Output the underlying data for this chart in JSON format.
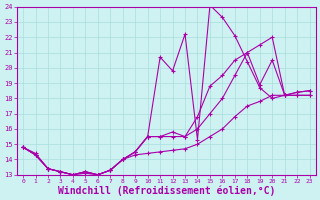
{
  "xlabel": "Windchill (Refroidissement éolien,°C)",
  "xlabel_fontsize": 7.0,
  "background_color": "#cef2f2",
  "grid_color": "#aadddd",
  "line_color": "#aa00aa",
  "xmin": 0,
  "xmax": 23,
  "ymin": 13,
  "ymax": 24,
  "series": [
    [
      14.8,
      14.3,
      13.4,
      13.2,
      13.0,
      13.2,
      13.0,
      13.3,
      14.0,
      14.5,
      15.5,
      20.7,
      19.8,
      22.2,
      15.3,
      24.1,
      23.3,
      22.1,
      20.4,
      18.7,
      18.0,
      18.2,
      18.2,
      18.2
    ],
    [
      14.8,
      14.3,
      13.4,
      13.2,
      13.0,
      13.2,
      13.0,
      13.3,
      14.0,
      14.5,
      15.5,
      15.5,
      15.8,
      15.5,
      16.8,
      18.8,
      19.5,
      20.5,
      21.0,
      18.9,
      20.5,
      18.2,
      18.4,
      18.5
    ],
    [
      14.8,
      14.4,
      13.4,
      13.2,
      13.0,
      13.1,
      13.0,
      13.3,
      14.0,
      14.3,
      14.4,
      14.5,
      14.6,
      14.7,
      15.0,
      15.5,
      16.0,
      16.8,
      17.5,
      17.8,
      18.2,
      18.2,
      18.2,
      18.2
    ],
    [
      14.8,
      14.3,
      13.4,
      13.2,
      13.0,
      13.2,
      13.0,
      13.3,
      14.0,
      14.5,
      15.5,
      15.5,
      15.5,
      15.5,
      16.0,
      17.0,
      18.0,
      19.5,
      21.0,
      21.5,
      22.0,
      18.2,
      18.4,
      18.5
    ]
  ]
}
